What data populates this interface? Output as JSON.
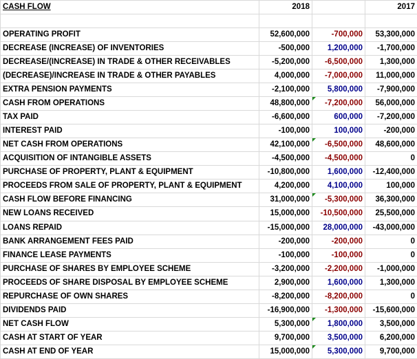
{
  "header": {
    "title": "CASH FLOW",
    "col_current": "2018",
    "col_diff": "",
    "col_prior": "2017"
  },
  "colors": {
    "negative_diff": "#8b0000",
    "positive_diff": "#00008b",
    "comment_flag": "#1e8c1e",
    "gridline": "#d9d9d9"
  },
  "rows": [
    {
      "label": "OPERATING PROFIT",
      "current": "52,600,000",
      "diff": "-700,000",
      "prior": "53,300,000",
      "total": true
    },
    {
      "label": "DECREASE (INCREASE) OF INVENTORIES",
      "current": "-500,000",
      "diff": "1,200,000",
      "prior": "-1,700,000"
    },
    {
      "label": "DECREASE/(INCREASE) IN TRADE & OTHER RECEIVABLES",
      "current": "-5,200,000",
      "diff": "-6,500,000",
      "prior": "1,300,000"
    },
    {
      "label": "(DECREASE)/INCREASE IN TRADE & OTHER PAYABLES",
      "current": "4,000,000",
      "diff": "-7,000,000",
      "prior": "11,000,000"
    },
    {
      "label": "EXTRA PENSION PAYMENTS",
      "current": "-2,100,000",
      "diff": "5,800,000",
      "prior": "-7,900,000"
    },
    {
      "label": "CASH FROM OPERATIONS",
      "current": "48,800,000",
      "diff": "-7,200,000",
      "prior": "56,000,000",
      "total": true,
      "flag": true
    },
    {
      "label": "TAX PAID",
      "current": "-6,600,000",
      "diff": "600,000",
      "prior": "-7,200,000"
    },
    {
      "label": "INTEREST PAID",
      "current": "-100,000",
      "diff": "100,000",
      "prior": "-200,000"
    },
    {
      "label": "NET CASH FROM OPERATIONS",
      "current": "42,100,000",
      "diff": "-6,500,000",
      "prior": "48,600,000",
      "total": true,
      "flag": true
    },
    {
      "label": "ACQUISITION OF INTANGIBLE ASSETS",
      "current": "-4,500,000",
      "diff": "-4,500,000",
      "prior": "0"
    },
    {
      "label": "PURCHASE OF PROPERTY, PLANT & EQUIPMENT",
      "current": "-10,800,000",
      "diff": "1,600,000",
      "prior": "-12,400,000"
    },
    {
      "label": "PROCEEDS FROM SALE OF PROPERTY, PLANT & EQUIPMENT",
      "current": "4,200,000",
      "diff": "4,100,000",
      "prior": "100,000"
    },
    {
      "label": "CASH FLOW BEFORE FINANCING",
      "current": "31,000,000",
      "diff": "-5,300,000",
      "prior": "36,300,000",
      "total": true,
      "flag": true
    },
    {
      "label": "NEW LOANS RECEIVED",
      "current": "15,000,000",
      "diff": "-10,500,000",
      "prior": "25,500,000"
    },
    {
      "label": "LOANS REPAID",
      "current": "-15,000,000",
      "diff": "28,000,000",
      "prior": "-43,000,000"
    },
    {
      "label": "BANK ARRANGEMENT FEES PAID",
      "current": "-200,000",
      "diff": "-200,000",
      "prior": "0"
    },
    {
      "label": "FINANCE LEASE PAYMENTS",
      "current": "-100,000",
      "diff": "-100,000",
      "prior": "0"
    },
    {
      "label": "PURCHASE OF SHARES BY EMPLOYEE SCHEME",
      "current": "-3,200,000",
      "diff": "-2,200,000",
      "prior": "-1,000,000"
    },
    {
      "label": "PROCEEDS OF SHARE DISPOSAL BY EMPLOYEE SCHEME",
      "current": "2,900,000",
      "diff": "1,600,000",
      "prior": "1,300,000"
    },
    {
      "label": "REPURCHASE OF OWN SHARES",
      "current": "-8,200,000",
      "diff": "-8,200,000",
      "prior": "0"
    },
    {
      "label": "DIVIDENDS PAID",
      "current": "-16,900,000",
      "diff": "-1,300,000",
      "prior": "-15,600,000"
    },
    {
      "label": "NET CASH FLOW",
      "current": "5,300,000",
      "diff": "1,800,000",
      "prior": "3,500,000",
      "total": true,
      "flag": true
    },
    {
      "label": "CASH AT START OF YEAR",
      "current": "9,700,000",
      "diff": "3,500,000",
      "prior": "6,200,000"
    },
    {
      "label": "CASH AT END OF YEAR",
      "current": "15,000,000",
      "diff": "5,300,000",
      "prior": "9,700,000",
      "flag": true
    }
  ]
}
